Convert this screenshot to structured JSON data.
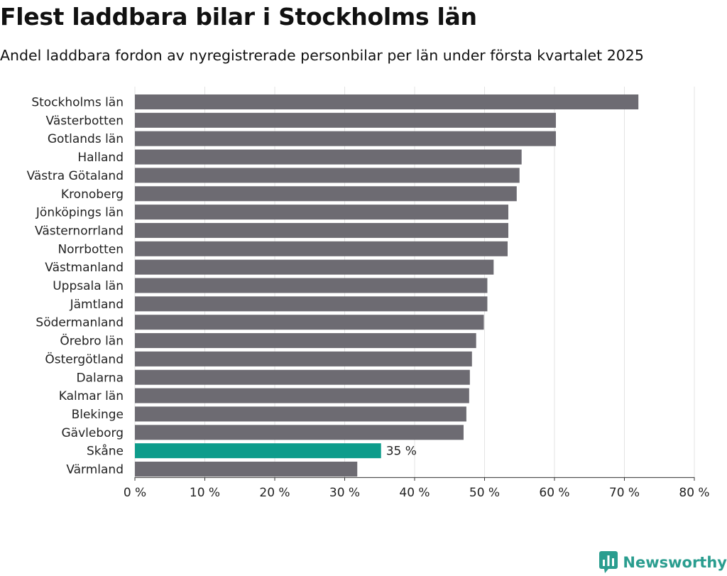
{
  "title": "Flest laddbara bilar i Stockholms län",
  "subtitle": "Andel laddbara fordon av nyregistrerade personbilar per län under första kvartalet 2025",
  "brand": {
    "name": "Newsworthy",
    "icon": "bar-chart-logo-icon",
    "color": "#2a9d8f"
  },
  "chart_data": {
    "type": "bar",
    "orientation": "horizontal",
    "categories": [
      "Stockholms län",
      "Västerbotten",
      "Gotlands län",
      "Halland",
      "Västra Götaland",
      "Kronoberg",
      "Jönköpings län",
      "Västernorrland",
      "Norrbotten",
      "Västmanland",
      "Uppsala län",
      "Jämtland",
      "Södermanland",
      "Örebro län",
      "Östergötland",
      "Dalarna",
      "Kalmar län",
      "Blekinge",
      "Gävleborg",
      "Skåne",
      "Värmland"
    ],
    "values": [
      72,
      60.2,
      60.2,
      55.3,
      55,
      54.6,
      53.4,
      53.4,
      53.3,
      51.3,
      50.4,
      50.4,
      49.9,
      48.8,
      48.2,
      47.9,
      47.8,
      47.4,
      47.0,
      35.2,
      31.8
    ],
    "highlight": {
      "category": "Skåne",
      "label": "35 %",
      "color": "#0d9c8b"
    },
    "bar_color": "#6d6b72",
    "xlim": [
      0,
      80
    ],
    "xticks": [
      0,
      10,
      20,
      30,
      40,
      50,
      60,
      70,
      80
    ],
    "xtick_labels": [
      "0 %",
      "10 %",
      "20 %",
      "30 %",
      "40 %",
      "50 %",
      "60 %",
      "70 %",
      "80 %"
    ],
    "grid": true
  }
}
